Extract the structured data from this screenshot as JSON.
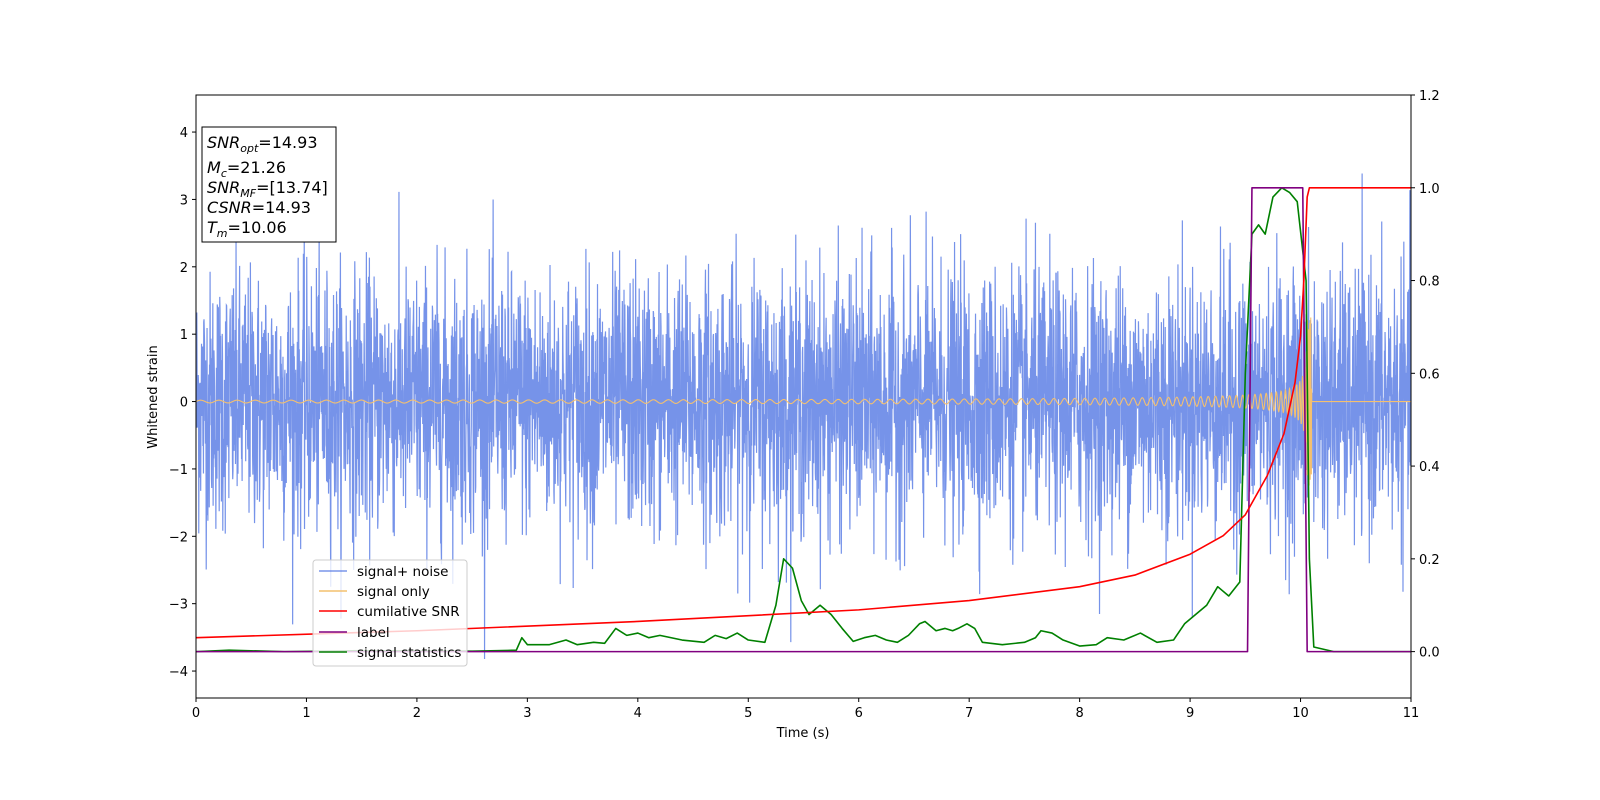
{
  "chart_data": {
    "type": "line",
    "xlabel": "Time (s)",
    "ylabel": "Whitened strain",
    "xlim": [
      0,
      11
    ],
    "ylim_left": [
      -4.4,
      4.55
    ],
    "ylim_right": [
      -0.1,
      1.2
    ],
    "x_ticks": [
      0,
      1,
      2,
      3,
      4,
      5,
      6,
      7,
      8,
      9,
      10,
      11
    ],
    "y_left_ticks": [
      -4,
      -3,
      -2,
      -1,
      0,
      1,
      2,
      3,
      4
    ],
    "y_right_ticks": [
      0.0,
      0.2,
      0.4,
      0.6,
      0.8,
      1.0,
      1.2
    ],
    "grid": false,
    "info_box": {
      "snr_opt": {
        "sym": "SNR",
        "sub": "opt",
        "value": "=14.93"
      },
      "mc": {
        "sym": "M",
        "sub": "c",
        "value": "=21.26"
      },
      "snr_mf": {
        "sym": "SNR",
        "sub": "MF",
        "value": "=[13.74]"
      },
      "csnr": {
        "sym": "CSNR",
        "value": "=14.93"
      },
      "tm": {
        "sym": "T",
        "sub": "m",
        "value": "=10.06"
      }
    },
    "legend_position": "lower-left",
    "series": [
      {
        "name": "signal+ noise",
        "axis": "left",
        "color": "#4169e1",
        "description_values": {
          "amplitude_std": 1.0,
          "spike_max": 4.18,
          "spike_min": -4.0
        }
      },
      {
        "name": "signal only",
        "axis": "left",
        "color": "#f4c06f",
        "chirp": {
          "start_amp": 0.02,
          "peak_time": 10.06,
          "peak_amp": 1.25,
          "end_time": 10.1
        }
      },
      {
        "name": "cumilative SNR",
        "axis": "right",
        "color": "#ff0000",
        "points": [
          [
            0,
            0.03
          ],
          [
            2,
            0.045
          ],
          [
            4,
            0.065
          ],
          [
            6,
            0.09
          ],
          [
            7,
            0.11
          ],
          [
            8,
            0.14
          ],
          [
            8.5,
            0.165
          ],
          [
            9,
            0.21
          ],
          [
            9.3,
            0.25
          ],
          [
            9.5,
            0.295
          ],
          [
            9.7,
            0.38
          ],
          [
            9.85,
            0.47
          ],
          [
            9.95,
            0.58
          ],
          [
            10.0,
            0.68
          ],
          [
            10.03,
            0.8
          ],
          [
            10.06,
            0.98
          ],
          [
            10.08,
            1.0
          ],
          [
            11,
            1.0
          ]
        ]
      },
      {
        "name": "label",
        "axis": "right",
        "color": "#800080",
        "points": [
          [
            0,
            0
          ],
          [
            9.52,
            0
          ],
          [
            9.56,
            1
          ],
          [
            10.02,
            1
          ],
          [
            10.06,
            0
          ],
          [
            11,
            0
          ]
        ]
      },
      {
        "name": "signal statistics",
        "axis": "right",
        "color": "#008000",
        "points": [
          [
            0,
            0
          ],
          [
            0.3,
            0.003
          ],
          [
            0.8,
            0.0
          ],
          [
            1.5,
            0.002
          ],
          [
            2.5,
            0.001
          ],
          [
            2.9,
            0.003
          ],
          [
            2.95,
            0.03
          ],
          [
            3.0,
            0.015
          ],
          [
            3.2,
            0.015
          ],
          [
            3.35,
            0.025
          ],
          [
            3.45,
            0.015
          ],
          [
            3.6,
            0.02
          ],
          [
            3.7,
            0.018
          ],
          [
            3.8,
            0.05
          ],
          [
            3.9,
            0.035
          ],
          [
            4.0,
            0.04
          ],
          [
            4.1,
            0.03
          ],
          [
            4.2,
            0.035
          ],
          [
            4.4,
            0.025
          ],
          [
            4.6,
            0.02
          ],
          [
            4.7,
            0.035
          ],
          [
            4.8,
            0.028
          ],
          [
            4.9,
            0.04
          ],
          [
            5.0,
            0.025
          ],
          [
            5.15,
            0.02
          ],
          [
            5.25,
            0.1
          ],
          [
            5.32,
            0.2
          ],
          [
            5.4,
            0.18
          ],
          [
            5.48,
            0.11
          ],
          [
            5.55,
            0.08
          ],
          [
            5.65,
            0.1
          ],
          [
            5.75,
            0.08
          ],
          [
            5.85,
            0.05
          ],
          [
            5.95,
            0.022
          ],
          [
            6.05,
            0.03
          ],
          [
            6.15,
            0.035
          ],
          [
            6.25,
            0.025
          ],
          [
            6.35,
            0.02
          ],
          [
            6.45,
            0.035
          ],
          [
            6.55,
            0.06
          ],
          [
            6.6,
            0.065
          ],
          [
            6.7,
            0.045
          ],
          [
            6.78,
            0.05
          ],
          [
            6.85,
            0.045
          ],
          [
            6.9,
            0.05
          ],
          [
            6.98,
            0.06
          ],
          [
            7.05,
            0.05
          ],
          [
            7.12,
            0.02
          ],
          [
            7.3,
            0.015
          ],
          [
            7.5,
            0.02
          ],
          [
            7.6,
            0.03
          ],
          [
            7.65,
            0.045
          ],
          [
            7.75,
            0.04
          ],
          [
            7.85,
            0.025
          ],
          [
            8.0,
            0.012
          ],
          [
            8.15,
            0.015
          ],
          [
            8.25,
            0.03
          ],
          [
            8.4,
            0.025
          ],
          [
            8.55,
            0.04
          ],
          [
            8.7,
            0.02
          ],
          [
            8.85,
            0.025
          ],
          [
            8.95,
            0.06
          ],
          [
            9.05,
            0.08
          ],
          [
            9.15,
            0.1
          ],
          [
            9.25,
            0.14
          ],
          [
            9.35,
            0.12
          ],
          [
            9.45,
            0.15
          ],
          [
            9.5,
            0.6
          ],
          [
            9.56,
            0.9
          ],
          [
            9.62,
            0.92
          ],
          [
            9.68,
            0.9
          ],
          [
            9.75,
            0.98
          ],
          [
            9.83,
            1.0
          ],
          [
            9.9,
            0.99
          ],
          [
            9.97,
            0.97
          ],
          [
            10.05,
            0.8
          ],
          [
            10.08,
            0.2
          ],
          [
            10.12,
            0.01
          ],
          [
            10.3,
            0.0
          ],
          [
            11,
            0.0
          ]
        ]
      }
    ]
  }
}
